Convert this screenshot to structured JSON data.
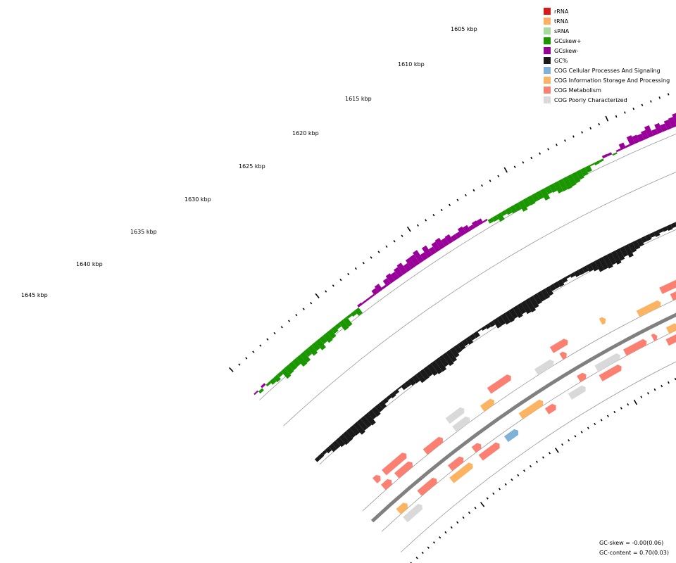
{
  "chart_data": {
    "type": "circular-genome-map",
    "scale_labels": [
      "1605 kbp",
      "1610 kbp",
      "1615 kbp",
      "1620 kbp",
      "1625 kbp",
      "1630 kbp",
      "1635 kbp",
      "1640 kbp",
      "1645 kbp"
    ],
    "legend": [
      {
        "label": "rRNA",
        "color": "#d7191c"
      },
      {
        "label": "tRNA",
        "color": "#fdae61"
      },
      {
        "label": "sRNA",
        "color": "#a6dba0"
      },
      {
        "label": "GCskew+",
        "color": "#1a9600"
      },
      {
        "label": "GCskew-",
        "color": "#990099"
      },
      {
        "label": "GC%",
        "color": "#1a1a1a"
      },
      {
        "label": "COG Cellular Processes And Signaling",
        "color": "#7fb2d8"
      },
      {
        "label": "COG Information Storage And Processing",
        "color": "#fdb462"
      },
      {
        "label": "COG Metabolism",
        "color": "#fb8072"
      },
      {
        "label": "COG Poorly Characterized",
        "color": "#d9d9d9"
      }
    ],
    "stats": {
      "gc_skew": "GC-skew = -0.00(0.06)",
      "gc_content": "GC-content = 0.70(0.03)"
    }
  }
}
